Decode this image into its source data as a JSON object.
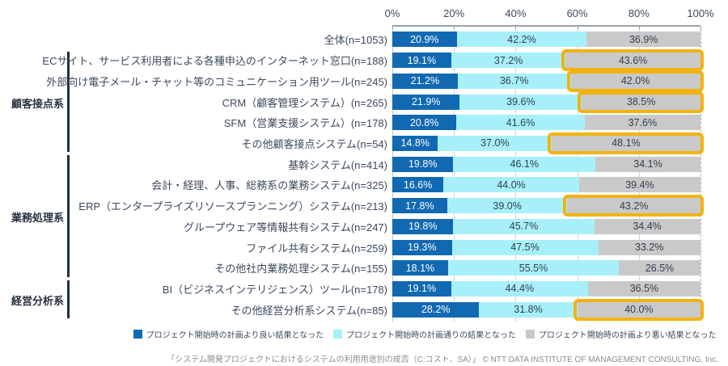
{
  "chart_data": {
    "type": "bar",
    "stacked": true,
    "orientation": "horizontal",
    "title": "",
    "x_axis": {
      "tick_labels": [
        "0%",
        "20%",
        "40%",
        "60%",
        "80%",
        "100%"
      ],
      "min": 0,
      "max": 100,
      "grid": true
    },
    "legend_position": "bottom",
    "series": [
      {
        "name": "プロジェクト開始時の計画より良い結果となった",
        "color": "#1169b2",
        "text_color": "#ffffff"
      },
      {
        "name": "プロジェクト開始時の計画通りの結果となった",
        "color": "#a7f0fa",
        "text_color": "#323f4e"
      },
      {
        "name": "プロジェクト開始時の計画より悪い結果となった",
        "color": "#c9c9c9",
        "text_color": "#323f4e"
      }
    ],
    "highlight_color": "#f2b30d",
    "groups": [
      {
        "label": "顧客接点系",
        "start_row": 2,
        "end_row": 6
      },
      {
        "label": "業務処理系",
        "start_row": 7,
        "end_row": 12
      },
      {
        "label": "経営分析系",
        "start_row": 13,
        "end_row": 14
      }
    ],
    "rows": [
      {
        "label": "全体(n=1053)",
        "values": [
          20.9,
          42.2,
          36.9
        ],
        "highlight_worse": false
      },
      {
        "label": "ECサイト、サービス利用者による各種申込のインターネット窓口(n=188)",
        "values": [
          19.1,
          37.2,
          43.6
        ],
        "highlight_worse": true
      },
      {
        "label": "外部向け電子メール・チャット等のコミュニケーション用ツール(n=245)",
        "values": [
          21.2,
          36.7,
          42.0
        ],
        "highlight_worse": true
      },
      {
        "label": "CRM（顧客管理システム）(n=265)",
        "values": [
          21.9,
          39.6,
          38.5
        ],
        "highlight_worse": true
      },
      {
        "label": "SFM（営業支援システム）(n=178)",
        "values": [
          20.8,
          41.6,
          37.6
        ],
        "highlight_worse": false
      },
      {
        "label": "その他顧客接点システム(n=54)",
        "values": [
          14.8,
          37.0,
          48.1
        ],
        "highlight_worse": true
      },
      {
        "label": "基幹システム(n=414)",
        "values": [
          19.8,
          46.1,
          34.1
        ],
        "highlight_worse": false
      },
      {
        "label": "会計・経理、人事、総務系の業務システム(n=325)",
        "values": [
          16.6,
          44.0,
          39.4
        ],
        "highlight_worse": false
      },
      {
        "label": "ERP（エンタープライズリソースプランニング）システム(n=213)",
        "values": [
          17.8,
          39.0,
          43.2
        ],
        "highlight_worse": true
      },
      {
        "label": "グループウェア等情報共有システム(n=247)",
        "values": [
          19.8,
          45.7,
          34.4
        ],
        "highlight_worse": false
      },
      {
        "label": "ファイル共有システム(n=259)",
        "values": [
          19.3,
          47.5,
          33.2
        ],
        "highlight_worse": false
      },
      {
        "label": "その他社内業務処理システム(n=155)",
        "values": [
          18.1,
          55.5,
          26.5
        ],
        "highlight_worse": false
      },
      {
        "label": "BI（ビジネスインテリジェンス）ツール(n=178)",
        "values": [
          19.1,
          44.4,
          36.5
        ],
        "highlight_worse": false
      },
      {
        "label": "その他経営分析系システム(n=85)",
        "values": [
          28.2,
          31.8,
          40.0
        ],
        "highlight_worse": true
      }
    ]
  },
  "footer": {
    "text": "「システム開発プロジェクトにおけるシステムの利用用途別の成否（C:コスト、SA）」 © NTT DATA INSTITUTE OF MANAGEMENT CONSULTING, Inc."
  }
}
